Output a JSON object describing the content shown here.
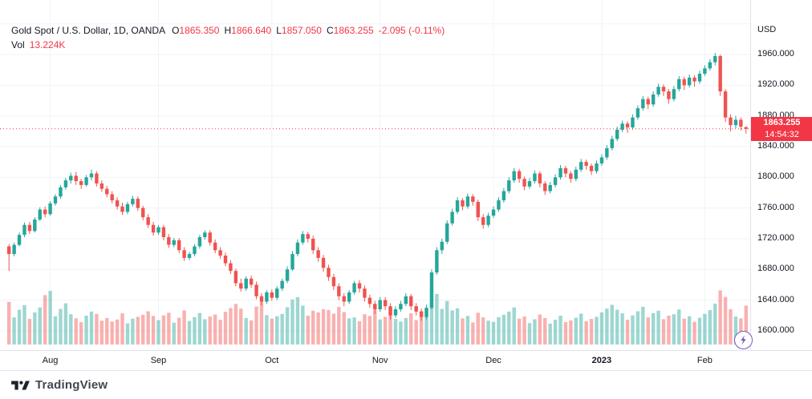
{
  "colors": {
    "up": "#26a69a",
    "down": "#ef5350",
    "up_volume": "rgba(38,166,154,0.45)",
    "down_volume": "rgba(239,83,80,0.45)",
    "grid": "#f0f3fa",
    "axis_border": "#e0e3eb",
    "text": "#131722",
    "accent_red": "#f23645",
    "realtime_purple": "#7e57c2",
    "background": "#ffffff"
  },
  "legend": {
    "title": "Gold Spot / U.S. Dollar, 1D, OANDA",
    "open_label": "O",
    "open_value": "1865.350",
    "high_label": "H",
    "high_value": "1866.640",
    "low_label": "L",
    "low_value": "1857.050",
    "close_label": "C",
    "close_value": "1863.255",
    "change": "-2.095 (-0.11%)",
    "volume_label": "Vol",
    "volume_value": "13.224K"
  },
  "price_axis": {
    "currency": "USD",
    "labels": [
      "1960.000",
      "1920.000",
      "1880.000",
      "1840.000",
      "1800.000",
      "1760.000",
      "1720.000",
      "1680.000",
      "1640.000",
      "1600.000"
    ],
    "last_price": "1863.255",
    "countdown": "14:54:32"
  },
  "footer": {
    "brand": "TradingView"
  },
  "chart_data": {
    "type": "candlestick",
    "title": "Gold Spot / U.S. Dollar, 1D, OANDA",
    "symbol": "Gold Spot / U.S. Dollar",
    "interval": "1D",
    "exchange": "OANDA",
    "ylabel": "USD",
    "ylim": [
      1580,
      2005
    ],
    "grid": true,
    "price_gridlines": [
      1600,
      1640,
      1680,
      1720,
      1760,
      1800,
      1840,
      1880,
      1920,
      1960,
      2000
    ],
    "last_price": 1863.255,
    "last_change": -2.095,
    "last_change_pct": -0.11,
    "last_volume_k": 13.224,
    "time_ticks": [
      {
        "label": "Aug",
        "i": 8
      },
      {
        "label": "Sep",
        "i": 29
      },
      {
        "label": "Oct",
        "i": 51
      },
      {
        "label": "Nov",
        "i": 72
      },
      {
        "label": "Dec",
        "i": 94
      },
      {
        "label": "2023",
        "i": 115
      },
      {
        "label": "Feb",
        "i": 135
      }
    ],
    "columns": [
      "open",
      "high",
      "low",
      "close",
      "volume_k"
    ],
    "candles": [
      [
        1710,
        1713,
        1678,
        1700,
        14.5
      ],
      [
        1700,
        1715,
        1697,
        1712,
        9.2
      ],
      [
        1712,
        1728,
        1710,
        1725,
        11.8
      ],
      [
        1725,
        1741,
        1722,
        1738,
        13.4
      ],
      [
        1738,
        1742,
        1726,
        1730,
        8.7
      ],
      [
        1730,
        1748,
        1728,
        1745,
        10.9
      ],
      [
        1745,
        1761,
        1743,
        1758,
        12.6
      ],
      [
        1758,
        1762,
        1748,
        1752,
        16.8
      ],
      [
        1752,
        1769,
        1750,
        1766,
        18.2
      ],
      [
        1766,
        1778,
        1763,
        1775,
        9.6
      ],
      [
        1775,
        1790,
        1772,
        1787,
        12.1
      ],
      [
        1787,
        1799,
        1784,
        1796,
        14.0
      ],
      [
        1796,
        1806,
        1792,
        1802,
        10.3
      ],
      [
        1802,
        1807,
        1790,
        1795,
        8.9
      ],
      [
        1795,
        1798,
        1785,
        1790,
        7.6
      ],
      [
        1790,
        1803,
        1788,
        1800,
        9.8
      ],
      [
        1800,
        1810,
        1796,
        1805,
        11.2
      ],
      [
        1805,
        1808,
        1788,
        1792,
        10.4
      ],
      [
        1792,
        1796,
        1781,
        1785,
        8.1
      ],
      [
        1785,
        1789,
        1774,
        1778,
        9.0
      ],
      [
        1778,
        1782,
        1766,
        1770,
        7.8
      ],
      [
        1770,
        1774,
        1758,
        1762,
        8.5
      ],
      [
        1762,
        1767,
        1751,
        1755,
        10.6
      ],
      [
        1755,
        1768,
        1752,
        1765,
        7.2
      ],
      [
        1765,
        1776,
        1762,
        1772,
        8.8
      ],
      [
        1772,
        1775,
        1756,
        1760,
        9.4
      ],
      [
        1760,
        1763,
        1744,
        1748,
        10.1
      ],
      [
        1748,
        1752,
        1734,
        1738,
        11.3
      ],
      [
        1738,
        1742,
        1724,
        1728,
        9.7
      ],
      [
        1728,
        1738,
        1725,
        1735,
        8.3
      ],
      [
        1735,
        1738,
        1718,
        1722,
        9.9
      ],
      [
        1722,
        1726,
        1708,
        1712,
        10.8
      ],
      [
        1712,
        1721,
        1709,
        1718,
        7.4
      ],
      [
        1718,
        1721,
        1701,
        1705,
        9.1
      ],
      [
        1705,
        1709,
        1691,
        1695,
        11.6
      ],
      [
        1695,
        1703,
        1692,
        1700,
        8.0
      ],
      [
        1700,
        1713,
        1697,
        1710,
        9.3
      ],
      [
        1710,
        1725,
        1707,
        1722,
        10.7
      ],
      [
        1722,
        1731,
        1719,
        1728,
        8.6
      ],
      [
        1728,
        1731,
        1711,
        1715,
        9.5
      ],
      [
        1715,
        1719,
        1701,
        1705,
        10.2
      ],
      [
        1705,
        1709,
        1694,
        1698,
        8.4
      ],
      [
        1698,
        1702,
        1684,
        1688,
        11.1
      ],
      [
        1688,
        1692,
        1674,
        1678,
        12.4
      ],
      [
        1678,
        1681,
        1658,
        1662,
        13.8
      ],
      [
        1662,
        1668,
        1651,
        1655,
        12.2
      ],
      [
        1655,
        1671,
        1652,
        1668,
        9.0
      ],
      [
        1668,
        1672,
        1656,
        1660,
        8.2
      ],
      [
        1660,
        1664,
        1641,
        1645,
        12.9
      ],
      [
        1645,
        1649,
        1633,
        1638,
        14.6
      ],
      [
        1638,
        1653,
        1635,
        1650,
        10.0
      ],
      [
        1650,
        1654,
        1639,
        1643,
        8.8
      ],
      [
        1643,
        1658,
        1640,
        1655,
        9.6
      ],
      [
        1655,
        1668,
        1652,
        1665,
        10.4
      ],
      [
        1665,
        1684,
        1662,
        1680,
        12.7
      ],
      [
        1680,
        1704,
        1678,
        1700,
        15.3
      ],
      [
        1700,
        1719,
        1697,
        1715,
        16.1
      ],
      [
        1715,
        1730,
        1712,
        1726,
        13.2
      ],
      [
        1726,
        1729,
        1715,
        1720,
        9.8
      ],
      [
        1720,
        1724,
        1700,
        1705,
        11.5
      ],
      [
        1705,
        1709,
        1690,
        1695,
        10.9
      ],
      [
        1695,
        1699,
        1677,
        1682,
        12.0
      ],
      [
        1682,
        1686,
        1665,
        1670,
        11.7
      ],
      [
        1670,
        1674,
        1653,
        1658,
        10.5
      ],
      [
        1658,
        1662,
        1640,
        1645,
        12.8
      ],
      [
        1645,
        1649,
        1632,
        1638,
        11.0
      ],
      [
        1638,
        1653,
        1635,
        1650,
        8.9
      ],
      [
        1650,
        1665,
        1647,
        1662,
        9.2
      ],
      [
        1662,
        1666,
        1650,
        1655,
        7.9
      ],
      [
        1655,
        1659,
        1638,
        1643,
        10.3
      ],
      [
        1643,
        1647,
        1630,
        1635,
        9.7
      ],
      [
        1635,
        1639,
        1622,
        1628,
        11.9
      ],
      [
        1628,
        1644,
        1625,
        1640,
        8.5
      ],
      [
        1640,
        1644,
        1627,
        1632,
        9.4
      ],
      [
        1632,
        1636,
        1615,
        1620,
        12.5
      ],
      [
        1620,
        1632,
        1617,
        1628,
        8.7
      ],
      [
        1628,
        1639,
        1625,
        1635,
        7.8
      ],
      [
        1635,
        1649,
        1632,
        1645,
        9.0
      ],
      [
        1645,
        1648,
        1627,
        1632,
        10.6
      ],
      [
        1632,
        1636,
        1620,
        1625,
        8.3
      ],
      [
        1625,
        1629,
        1613,
        1618,
        11.4
      ],
      [
        1618,
        1634,
        1615,
        1630,
        9.9
      ],
      [
        1630,
        1680,
        1628,
        1676,
        19.6
      ],
      [
        1676,
        1709,
        1673,
        1705,
        17.2
      ],
      [
        1705,
        1720,
        1700,
        1716,
        12.1
      ],
      [
        1716,
        1744,
        1713,
        1740,
        14.8
      ],
      [
        1740,
        1759,
        1737,
        1755,
        11.6
      ],
      [
        1755,
        1774,
        1752,
        1770,
        12.3
      ],
      [
        1770,
        1773,
        1757,
        1762,
        8.9
      ],
      [
        1762,
        1779,
        1759,
        1775,
        9.7
      ],
      [
        1775,
        1778,
        1763,
        1768,
        7.5
      ],
      [
        1768,
        1771,
        1743,
        1748,
        10.8
      ],
      [
        1748,
        1752,
        1733,
        1738,
        9.2
      ],
      [
        1738,
        1754,
        1735,
        1750,
        8.1
      ],
      [
        1750,
        1762,
        1747,
        1758,
        7.7
      ],
      [
        1758,
        1774,
        1755,
        1770,
        9.3
      ],
      [
        1770,
        1786,
        1767,
        1782,
        10.1
      ],
      [
        1782,
        1800,
        1779,
        1796,
        11.2
      ],
      [
        1796,
        1812,
        1793,
        1808,
        12.6
      ],
      [
        1808,
        1811,
        1793,
        1798,
        8.8
      ],
      [
        1798,
        1801,
        1783,
        1788,
        9.5
      ],
      [
        1788,
        1799,
        1785,
        1795,
        7.3
      ],
      [
        1795,
        1809,
        1792,
        1805,
        8.6
      ],
      [
        1805,
        1808,
        1787,
        1792,
        10.2
      ],
      [
        1792,
        1795,
        1777,
        1782,
        9.0
      ],
      [
        1782,
        1794,
        1779,
        1790,
        7.1
      ],
      [
        1790,
        1804,
        1787,
        1800,
        8.4
      ],
      [
        1800,
        1816,
        1797,
        1812,
        9.8
      ],
      [
        1812,
        1815,
        1800,
        1805,
        7.6
      ],
      [
        1805,
        1808,
        1793,
        1798,
        8.2
      ],
      [
        1798,
        1814,
        1795,
        1810,
        9.1
      ],
      [
        1810,
        1824,
        1807,
        1820,
        10.5
      ],
      [
        1820,
        1823,
        1810,
        1815,
        7.9
      ],
      [
        1815,
        1818,
        1803,
        1808,
        8.7
      ],
      [
        1808,
        1822,
        1805,
        1818,
        9.4
      ],
      [
        1818,
        1830,
        1815,
        1826,
        10.9
      ],
      [
        1826,
        1842,
        1823,
        1838,
        12.2
      ],
      [
        1838,
        1854,
        1835,
        1850,
        13.5
      ],
      [
        1850,
        1866,
        1847,
        1862,
        11.8
      ],
      [
        1862,
        1874,
        1859,
        1870,
        10.6
      ],
      [
        1870,
        1873,
        1858,
        1865,
        8.4
      ],
      [
        1865,
        1882,
        1862,
        1878,
        9.9
      ],
      [
        1878,
        1894,
        1875,
        1890,
        11.3
      ],
      [
        1890,
        1906,
        1887,
        1902,
        12.8
      ],
      [
        1902,
        1905,
        1889,
        1895,
        9.2
      ],
      [
        1895,
        1912,
        1892,
        1908,
        10.7
      ],
      [
        1908,
        1922,
        1905,
        1918,
        11.5
      ],
      [
        1918,
        1921,
        1906,
        1912,
        8.6
      ],
      [
        1912,
        1915,
        1896,
        1902,
        9.8
      ],
      [
        1902,
        1919,
        1899,
        1915,
        10.3
      ],
      [
        1915,
        1932,
        1912,
        1928,
        11.9
      ],
      [
        1928,
        1931,
        1914,
        1920,
        8.8
      ],
      [
        1920,
        1934,
        1917,
        1930,
        9.6
      ],
      [
        1930,
        1933,
        1918,
        1925,
        7.7
      ],
      [
        1925,
        1939,
        1922,
        1935,
        9.1
      ],
      [
        1935,
        1946,
        1932,
        1942,
        10.4
      ],
      [
        1942,
        1954,
        1939,
        1950,
        11.7
      ],
      [
        1950,
        1962,
        1946,
        1958,
        13.9
      ],
      [
        1958,
        1960,
        1906,
        1912,
        18.4
      ],
      [
        1912,
        1915,
        1872,
        1878,
        16.2
      ],
      [
        1878,
        1882,
        1860,
        1868,
        12.0
      ],
      [
        1868,
        1880,
        1864,
        1875,
        9.5
      ],
      [
        1875,
        1878,
        1861,
        1866,
        8.9
      ],
      [
        1865.35,
        1866.64,
        1857.05,
        1863.255,
        13.224
      ]
    ]
  }
}
